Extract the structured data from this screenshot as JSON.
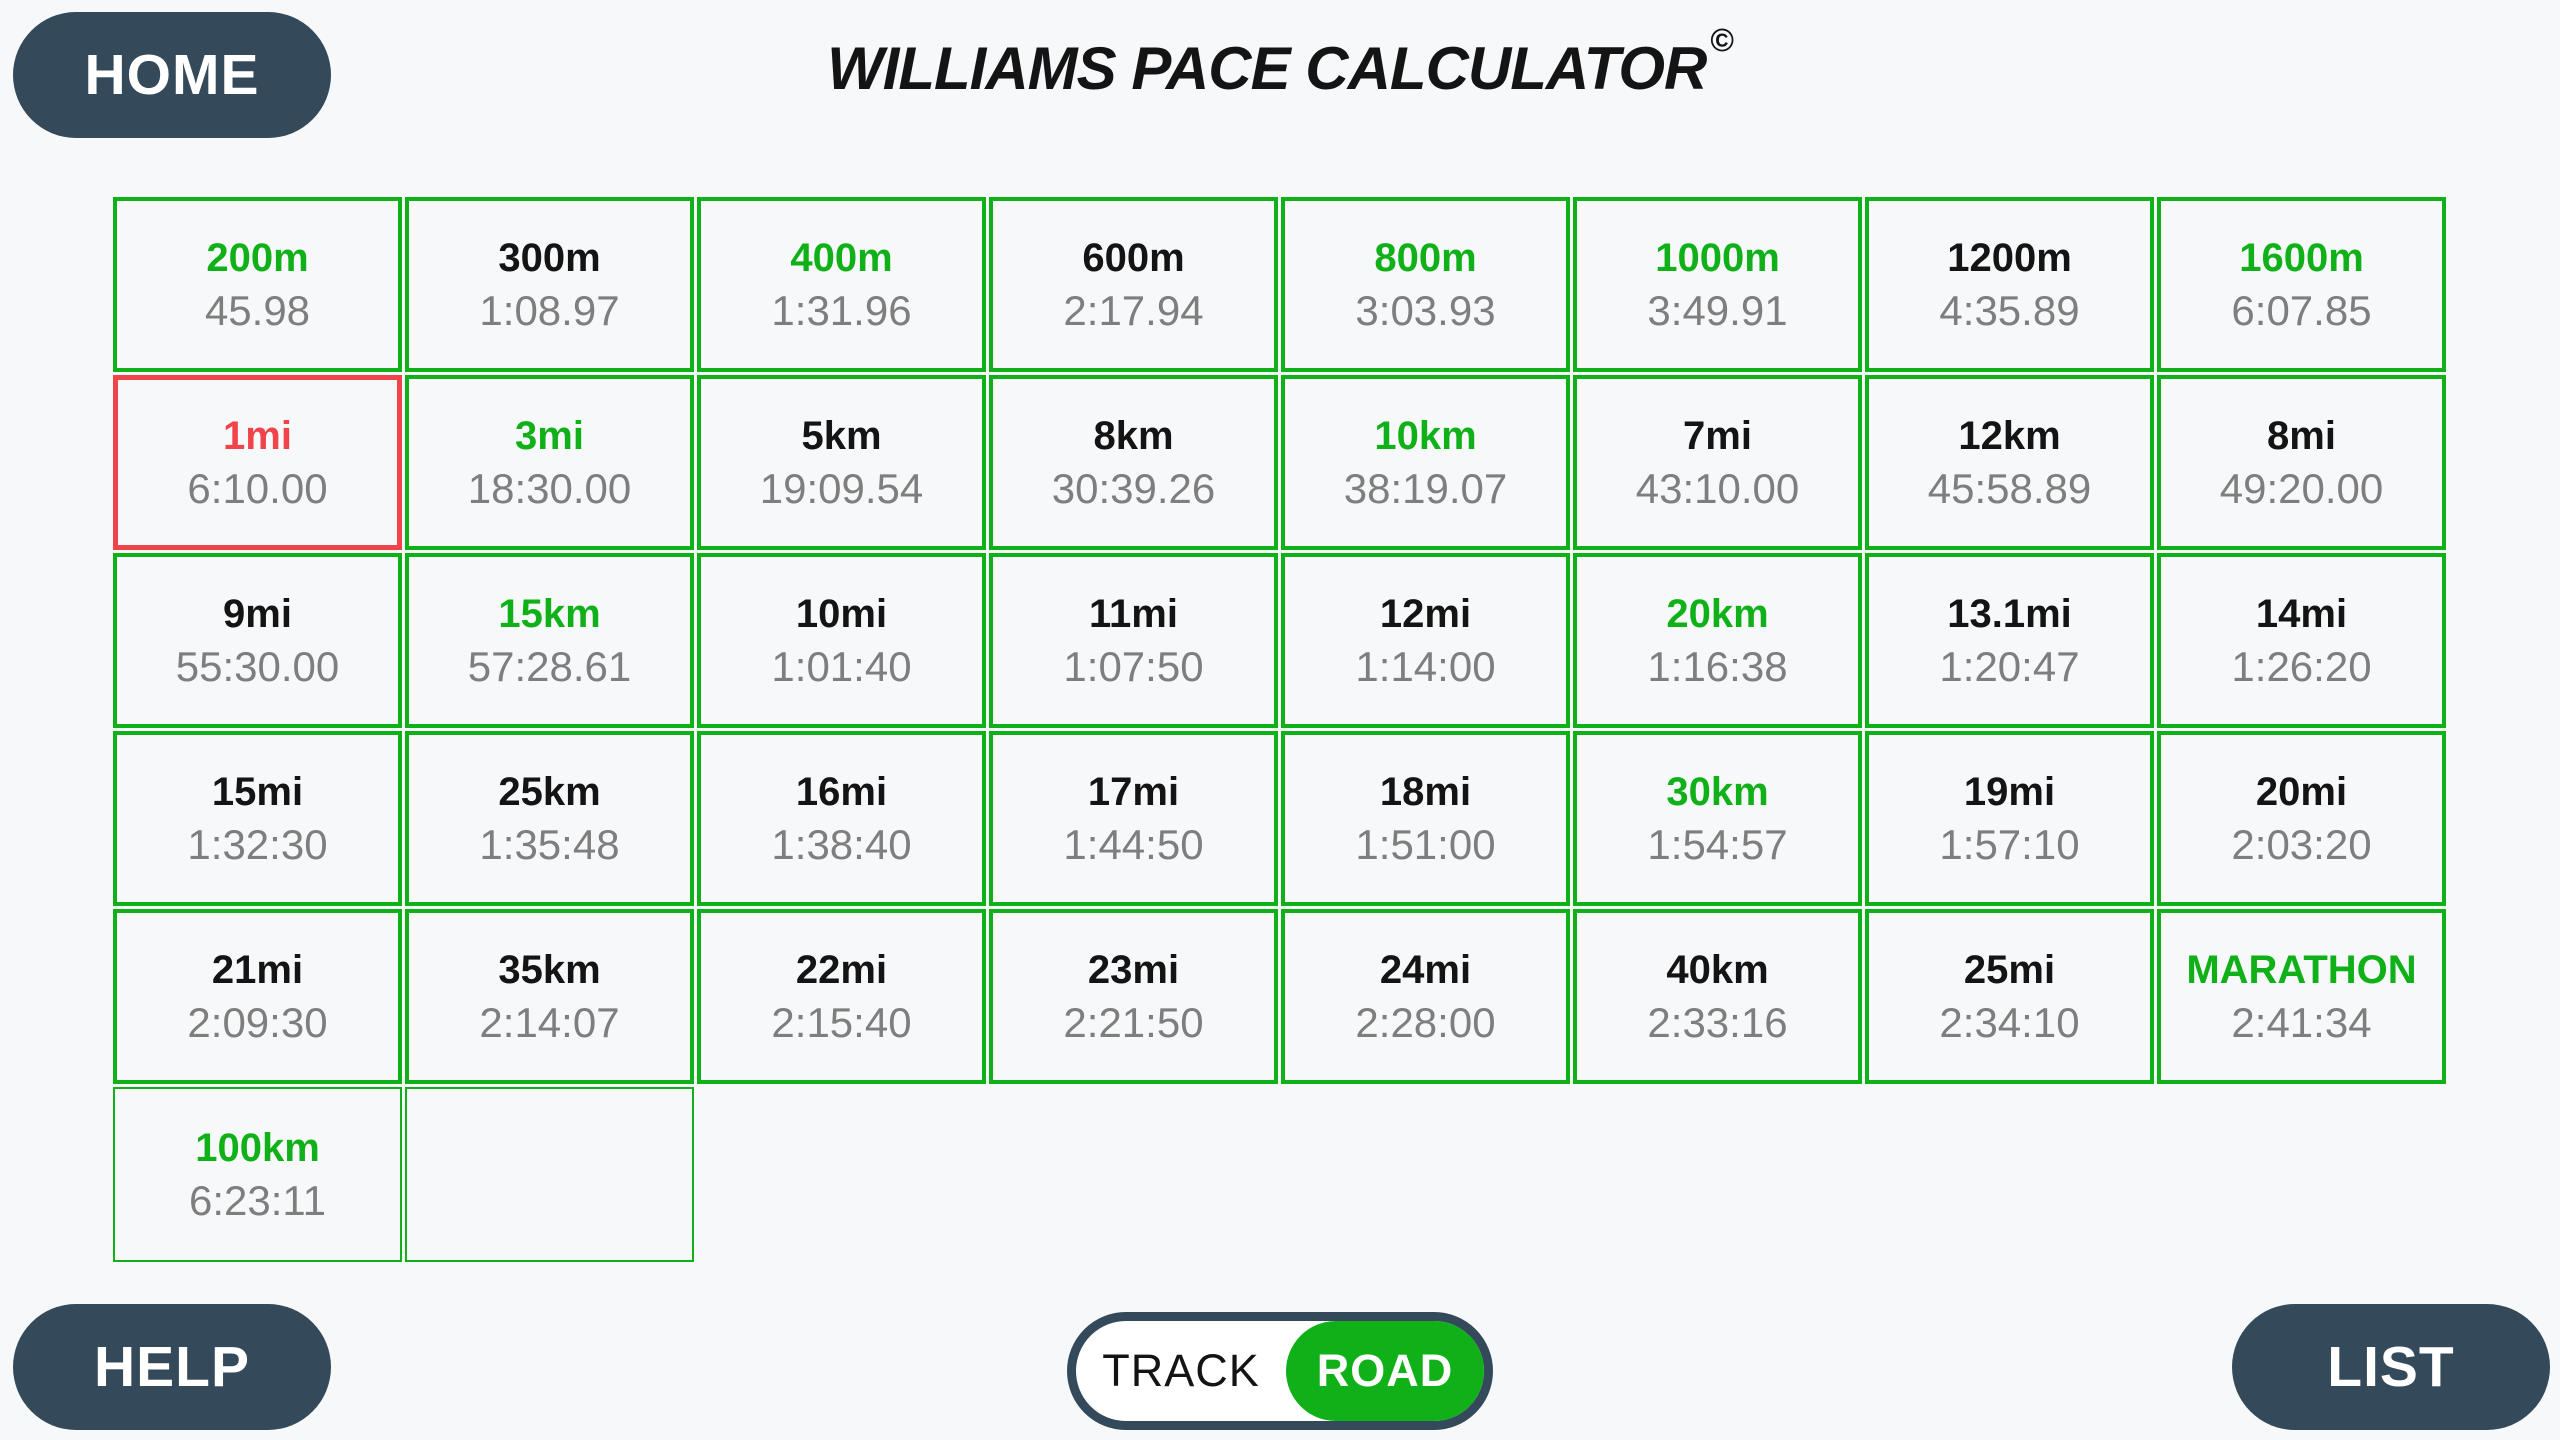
{
  "header": {
    "home_label": "HOME",
    "title": "WILLIAMS PACE CALCULATOR",
    "copyright": "©"
  },
  "footer": {
    "help_label": "HELP",
    "list_label": "LIST",
    "toggle": {
      "track_label": "TRACK",
      "road_label": "ROAD",
      "selected": "ROAD"
    }
  },
  "colors": {
    "green": "#10B019",
    "red": "#F1434A",
    "dark_slate": "#34495A",
    "time_gray": "#7E7E7E",
    "label_black": "#141414",
    "background": "#F7F8F9"
  },
  "pace_table": {
    "selected_distance": "1mi",
    "rows": [
      [
        {
          "label": "200m",
          "time": "45.98",
          "color": "green"
        },
        {
          "label": "300m",
          "time": "1:08.97",
          "color": "black"
        },
        {
          "label": "400m",
          "time": "1:31.96",
          "color": "green"
        },
        {
          "label": "600m",
          "time": "2:17.94",
          "color": "black"
        },
        {
          "label": "800m",
          "time": "3:03.93",
          "color": "green"
        },
        {
          "label": "1000m",
          "time": "3:49.91",
          "color": "green"
        },
        {
          "label": "1200m",
          "time": "4:35.89",
          "color": "black"
        },
        {
          "label": "1600m",
          "time": "6:07.85",
          "color": "green"
        }
      ],
      [
        {
          "label": "1mi",
          "time": "6:10.00",
          "color": "red",
          "selected": true
        },
        {
          "label": "3mi",
          "time": "18:30.00",
          "color": "green"
        },
        {
          "label": "5km",
          "time": "19:09.54",
          "color": "black"
        },
        {
          "label": "8km",
          "time": "30:39.26",
          "color": "black"
        },
        {
          "label": "10km",
          "time": "38:19.07",
          "color": "green"
        },
        {
          "label": "7mi",
          "time": "43:10.00",
          "color": "black"
        },
        {
          "label": "12km",
          "time": "45:58.89",
          "color": "black"
        },
        {
          "label": "8mi",
          "time": "49:20.00",
          "color": "black"
        }
      ],
      [
        {
          "label": "9mi",
          "time": "55:30.00",
          "color": "black"
        },
        {
          "label": "15km",
          "time": "57:28.61",
          "color": "green"
        },
        {
          "label": "10mi",
          "time": "1:01:40",
          "color": "black"
        },
        {
          "label": "11mi",
          "time": "1:07:50",
          "color": "black"
        },
        {
          "label": "12mi",
          "time": "1:14:00",
          "color": "black"
        },
        {
          "label": "20km",
          "time": "1:16:38",
          "color": "green"
        },
        {
          "label": "13.1mi",
          "time": "1:20:47",
          "color": "black"
        },
        {
          "label": "14mi",
          "time": "1:26:20",
          "color": "black"
        }
      ],
      [
        {
          "label": "15mi",
          "time": "1:32:30",
          "color": "black"
        },
        {
          "label": "25km",
          "time": "1:35:48",
          "color": "black"
        },
        {
          "label": "16mi",
          "time": "1:38:40",
          "color": "black"
        },
        {
          "label": "17mi",
          "time": "1:44:50",
          "color": "black"
        },
        {
          "label": "18mi",
          "time": "1:51:00",
          "color": "black"
        },
        {
          "label": "30km",
          "time": "1:54:57",
          "color": "green"
        },
        {
          "label": "19mi",
          "time": "1:57:10",
          "color": "black"
        },
        {
          "label": "20mi",
          "time": "2:03:20",
          "color": "black"
        }
      ],
      [
        {
          "label": "21mi",
          "time": "2:09:30",
          "color": "black"
        },
        {
          "label": "35km",
          "time": "2:14:07",
          "color": "black"
        },
        {
          "label": "22mi",
          "time": "2:15:40",
          "color": "black"
        },
        {
          "label": "23mi",
          "time": "2:21:50",
          "color": "black"
        },
        {
          "label": "24mi",
          "time": "2:28:00",
          "color": "black"
        },
        {
          "label": "40km",
          "time": "2:33:16",
          "color": "black"
        },
        {
          "label": "25mi",
          "time": "2:34:10",
          "color": "black"
        },
        {
          "label": "MARATHON",
          "time": "2:41:34",
          "color": "green"
        }
      ],
      [
        {
          "label": "100km",
          "time": "6:23:11",
          "color": "green"
        },
        {
          "empty": true
        }
      ]
    ]
  }
}
